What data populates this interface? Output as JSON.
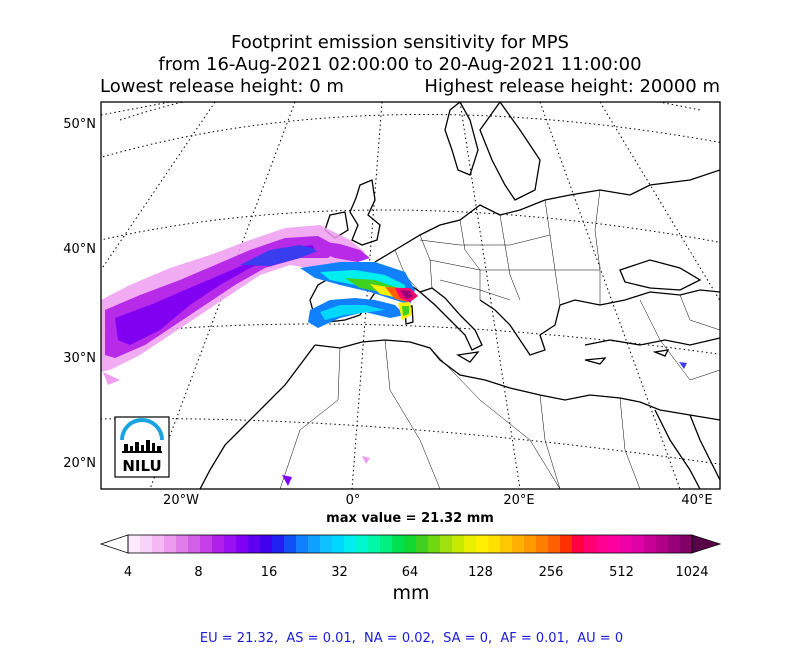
{
  "title": {
    "line1": "Footprint emission sensitivity for MPS",
    "line2": "from 16-Aug-2021 02:00:00 to 20-Aug-2021 11:00:00",
    "lowest_release": "Lowest release height: 0 m",
    "highest_release": "Highest release height: 20000 m"
  },
  "map": {
    "lat_labels": [
      "50°N",
      "40°N",
      "30°N",
      "20°N"
    ],
    "lon_labels": [
      "20°W",
      "0°",
      "20°E",
      "40°E"
    ],
    "logo_text": "NILU"
  },
  "max_value": "max value = 21.32 mm",
  "colorbar": {
    "ticks": [
      "4",
      "8",
      "16",
      "32",
      "64",
      "128",
      "256",
      "512",
      "1024"
    ],
    "unit": "mm",
    "colors": [
      "#fde8fd",
      "#f9d2f9",
      "#f4b8f4",
      "#eb9aee",
      "#e07ce8",
      "#d560e8",
      "#c63fe6",
      "#b020ea",
      "#9a10f0",
      "#8000f5",
      "#6000f0",
      "#4000ee",
      "#2020f0",
      "#1050f5",
      "#1080ff",
      "#10a0ff",
      "#10c0ff",
      "#00d8ff",
      "#00eef0",
      "#00f8d0",
      "#00f8a8",
      "#00f080",
      "#00e050",
      "#10d830",
      "#40d020",
      "#70d810",
      "#a0e010",
      "#c8e800",
      "#e8f000",
      "#fff000",
      "#ffe000",
      "#ffc800",
      "#ffb000",
      "#ff9a00",
      "#ff8000",
      "#ff6000",
      "#ff3000",
      "#ff0040",
      "#ff0070",
      "#ff0090",
      "#ff00a0",
      "#f000a8",
      "#e000a8",
      "#c80098",
      "#b00088",
      "#980078",
      "#800068"
    ]
  },
  "footer": "EU = 21.32,  AS = 0.01,  NA = 0.02,  SA = 0,  AF = 0.01,  AU = 0"
}
